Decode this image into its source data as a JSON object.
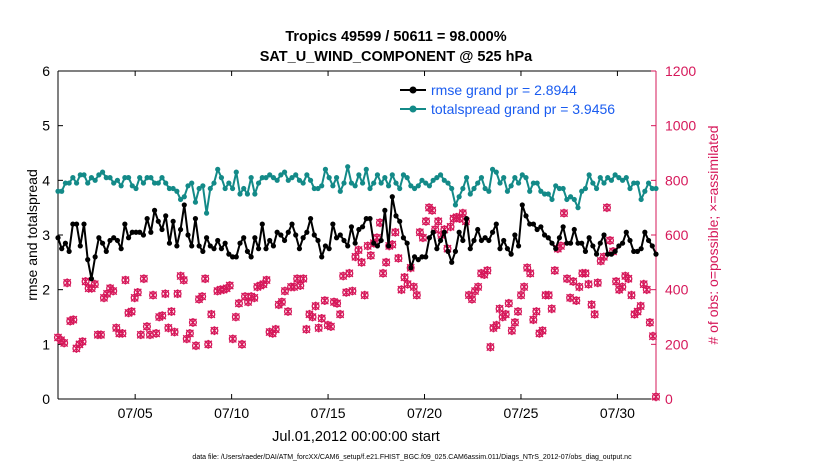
{
  "chart_data": {
    "type": "line",
    "title_line1": "Tropics 49599 / 50611 = 98.000%",
    "title_line2": "SAT_U_WIND_COMPONENT @ 525 hPa",
    "xlabel": "Jul.01,2012 00:00:00 start",
    "ylabel_left": "rmse and totalspread",
    "ylabel_right": "# of obs: o=possible; ×=assimilated",
    "footer": "data file: /Users/raeder/DAI/ATM_forcXX/CAM6_setup/f.e21.FHIST_BGC.f09_025.CAM6assim.011/Diags_NTrS_2012-07/obs_diag_output.nc",
    "xlim": [
      1.0,
      32.0
    ],
    "ylim_left": [
      0,
      6
    ],
    "ylim_right": [
      0,
      1200
    ],
    "x_ticks": [
      5,
      10,
      15,
      20,
      25,
      30
    ],
    "x_tick_labels": [
      "07/05",
      "07/10",
      "07/15",
      "07/20",
      "07/25",
      "07/30"
    ],
    "y_ticks_left": [
      0,
      1,
      2,
      3,
      4,
      5,
      6
    ],
    "y_ticks_right": [
      0,
      200,
      400,
      600,
      800,
      1000,
      1200
    ],
    "colors": {
      "rmse": "#000000",
      "spread": "#138a88",
      "obs": "#d6185a",
      "axis": "#000000",
      "right_axis": "#d6185a",
      "legend_text": "#1a5cf0"
    },
    "legend": [
      {
        "name": "rmse grand pr = 2.8944",
        "key": "rmse"
      },
      {
        "name": "totalspread grand pr = 3.9456",
        "key": "spread"
      }
    ],
    "series": [
      {
        "name": "rmse",
        "values": [
          2.95,
          2.75,
          2.85,
          2.7,
          3.2,
          3.2,
          2.8,
          3.2,
          2.55,
          2.2,
          2.6,
          2.95,
          2.85,
          2.7,
          2.9,
          2.95,
          2.9,
          2.75,
          3.2,
          2.95,
          3.05,
          3.05,
          3.05,
          3.0,
          3.3,
          3.05,
          3.45,
          3.25,
          3.1,
          3.35,
          2.85,
          3.25,
          2.8,
          3.1,
          3.55,
          3.0,
          2.8,
          3.3,
          2.8,
          2.7,
          2.95,
          2.8,
          2.75,
          2.9,
          2.75,
          2.85,
          2.65,
          2.6,
          2.6,
          2.85,
          2.95,
          2.7,
          2.6,
          2.95,
          2.75,
          3.2,
          2.75,
          2.9,
          2.8,
          3.05,
          3.0,
          2.9,
          3.05,
          3.2,
          3.0,
          2.75,
          2.95,
          3.05,
          3.3,
          3.0,
          2.9,
          2.6,
          2.8,
          2.75,
          3.2,
          2.95,
          3.0,
          2.9,
          2.8,
          3.15,
          2.85,
          3.1,
          3.15,
          3.3,
          3.3,
          2.85,
          2.8,
          2.9,
          3.45,
          2.8,
          3.7,
          3.35,
          3.25,
          2.95,
          2.85,
          2.4,
          2.6,
          2.55,
          2.6,
          2.6,
          2.95,
          3.05,
          2.75,
          2.9,
          3.05,
          2.7,
          2.5,
          2.7,
          3.05,
          2.9,
          3.3,
          2.75,
          2.9,
          3.1,
          2.9,
          2.95,
          2.9,
          3.05,
          3.2,
          2.75,
          2.9,
          2.75,
          2.65,
          3.0,
          2.8,
          3.55,
          3.35,
          3.2,
          3.2,
          3.1,
          3.15,
          3.0,
          2.95,
          2.85,
          2.75,
          2.95,
          3.15,
          2.85,
          2.85,
          3.1,
          2.85,
          2.85,
          2.7,
          2.95,
          2.8,
          2.65,
          2.85,
          3.0,
          2.65,
          2.65,
          2.7,
          2.8,
          2.85,
          3.05,
          2.9,
          2.7,
          2.7,
          2.75,
          3.05,
          2.9,
          2.8,
          2.65
        ]
      },
      {
        "name": "totalspread",
        "values": [
          3.8,
          3.8,
          3.95,
          3.95,
          4.05,
          3.95,
          4.1,
          4.1,
          3.95,
          4.05,
          4.0,
          4.1,
          4.15,
          4.05,
          4.05,
          3.95,
          4.0,
          3.9,
          4.05,
          4.05,
          3.9,
          3.85,
          4.05,
          3.95,
          4.05,
          4.05,
          3.95,
          3.95,
          4.05,
          3.95,
          3.85,
          3.85,
          3.8,
          3.65,
          3.7,
          3.9,
          3.95,
          3.6,
          3.85,
          3.9,
          3.4,
          3.85,
          3.95,
          4.2,
          4.05,
          3.85,
          3.95,
          3.85,
          4.15,
          3.75,
          3.85,
          3.75,
          4.05,
          3.75,
          3.95,
          4.05,
          4.05,
          4.1,
          4.05,
          4.0,
          4.1,
          4.15,
          4.0,
          4.05,
          4.1,
          4.0,
          3.95,
          4.1,
          4.0,
          3.85,
          3.85,
          3.9,
          4.2,
          4.05,
          3.9,
          4.05,
          3.8,
          3.95,
          4.25,
          3.95,
          3.9,
          4.1,
          3.95,
          4.2,
          3.85,
          3.95,
          4.1,
          3.95,
          4.05,
          3.9,
          4.1,
          3.95,
          3.85,
          4.1,
          4.05,
          3.9,
          3.85,
          3.9,
          4.0,
          3.95,
          3.9,
          4.0,
          4.05,
          4.1,
          4.0,
          3.95,
          3.85,
          3.55,
          3.7,
          3.85,
          4.05,
          3.75,
          3.85,
          3.95,
          4.05,
          3.85,
          3.8,
          4.2,
          4.15,
          3.95,
          4.05,
          3.8,
          3.9,
          4.05,
          3.95,
          4.1,
          4.05,
          3.8,
          3.95,
          3.95,
          3.8,
          3.75,
          3.75,
          3.65,
          3.9,
          3.85,
          3.85,
          3.65,
          3.7,
          3.65,
          3.5,
          3.8,
          3.85,
          4.1,
          3.95,
          3.85,
          4.05,
          3.95,
          4.05,
          4.0,
          4.1,
          4.05,
          4.0,
          4.05,
          3.85,
          3.95,
          3.95,
          3.65,
          3.8,
          3.95,
          3.85,
          3.85
        ]
      },
      {
        "name": "obs",
        "values": [
          225,
          215,
          205,
          425,
          285,
          290,
          185,
          200,
          210,
          430,
          405,
          405,
          420,
          235,
          235,
          370,
          385,
          405,
          395,
          260,
          240,
          240,
          435,
          315,
          320,
          370,
          390,
          235,
          440,
          265,
          235,
          380,
          240,
          300,
          305,
          385,
          260,
          320,
          245,
          385,
          450,
          435,
          220,
          240,
          280,
          195,
          365,
          375,
          440,
          200,
          310,
          250,
          395,
          400,
          400,
          405,
          415,
          220,
          300,
          350,
          200,
          375,
          355,
          375,
          370,
          410,
          415,
          420,
          435,
          245,
          240,
          255,
          345,
          355,
          395,
          320,
          410,
          410,
          440,
          415,
          440,
          255,
          310,
          300,
          340,
          260,
          295,
          360,
          270,
          265,
          355,
          350,
          310,
          450,
          390,
          460,
          395,
          520,
          545,
          500,
          380,
          560,
          525,
          570,
          590,
          645,
          460,
          500,
          560,
          565,
          610,
          515,
          400,
          445,
          420,
          480,
          410,
          380,
          610,
          590,
          650,
          700,
          690,
          620,
          650,
          600,
          620,
          550,
          630,
          660,
          665,
          660,
          680,
          650,
          380,
          365,
          395,
          410,
          460,
          455,
          470,
          190,
          260,
          270,
          330,
          300,
          310,
          350,
          250,
          280,
          320,
          380,
          410,
          480,
          460,
          290,
          320,
          240,
          250,
          380,
          380,
          330,
          470,
          550,
          560,
          680,
          440,
          370,
          430,
          360,
          410,
          460,
          460,
          420,
          345,
          310,
          425,
          505,
          520,
          700,
          580,
          540,
          430,
          400,
          410,
          450,
          440,
          380,
          310,
          320,
          340,
          420,
          400,
          280,
          230,
          8
        ]
      }
    ]
  }
}
